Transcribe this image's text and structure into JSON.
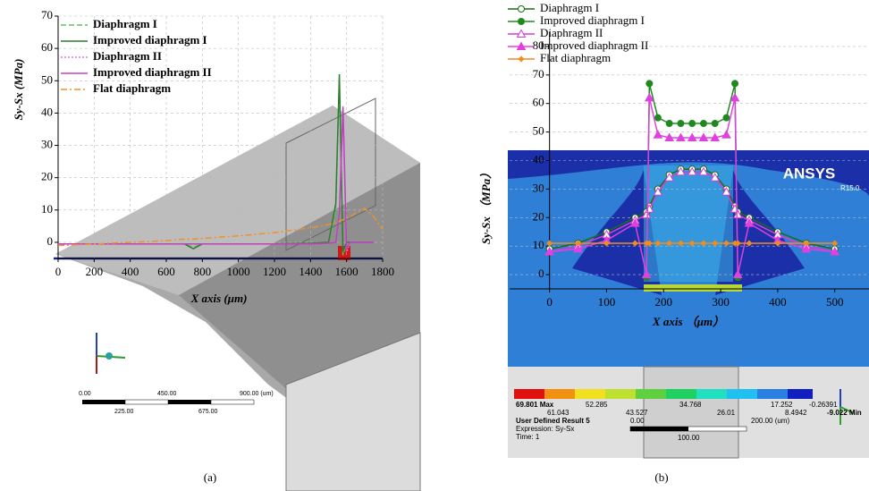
{
  "chart_data": [
    {
      "type": "line",
      "x_label": "X axis (μm)",
      "y_label": "Sy-Sx (MPa)",
      "caption": "(a)",
      "x": [
        0,
        200,
        400,
        600,
        700,
        750,
        800,
        1000,
        1200,
        1400,
        1500,
        1540,
        1560,
        1580,
        1600,
        1620,
        1650,
        1700,
        1750,
        1800
      ],
      "series": [
        {
          "name": "Diaphragm I",
          "color": "#5fbf5f",
          "style": "dashed",
          "values": [
            -0.5,
            -0.5,
            -0.5,
            -0.5,
            -0.5,
            -1.5,
            -0.5,
            -0.5,
            -0.5,
            -0.3,
            0,
            10,
            50,
            -4,
            0,
            0,
            0,
            0,
            0,
            null
          ]
        },
        {
          "name": "Improved diaphragm I",
          "color": "#2e7d32",
          "style": "solid",
          "values": [
            -0.5,
            -0.5,
            -0.5,
            -0.5,
            -0.5,
            -2,
            -0.5,
            -0.5,
            -0.5,
            -0.3,
            0,
            12,
            52,
            -3,
            0,
            0,
            0,
            0,
            0,
            null
          ]
        },
        {
          "name": "Diaphragm II",
          "color": "#e07ad6",
          "style": "dotted",
          "values": [
            -0.5,
            -0.5,
            -0.5,
            -0.5,
            -0.5,
            -0.5,
            -0.5,
            -0.5,
            -0.5,
            -0.5,
            -0.3,
            0,
            8,
            40,
            -3,
            0,
            0,
            0,
            0,
            null
          ]
        },
        {
          "name": "Improved diaphragm II",
          "color": "#c040c0",
          "style": "solid",
          "values": [
            -0.5,
            -0.5,
            -0.5,
            -0.5,
            -0.5,
            -0.5,
            -0.5,
            -0.5,
            -0.5,
            -0.5,
            -0.3,
            0,
            9,
            42,
            -2,
            0,
            0,
            0,
            0,
            null
          ]
        },
        {
          "name": "Flat diaphragm",
          "color": "#f0902a",
          "style": "dashdot",
          "values": [
            -1,
            -0.5,
            0,
            0.5,
            1,
            1,
            1.2,
            2,
            3,
            4.5,
            5.5,
            6,
            6.5,
            7,
            7.5,
            8,
            9,
            10.5,
            8,
            4
          ]
        }
      ],
      "xlim": [
        0,
        1800
      ],
      "ylim": [
        -5,
        70
      ],
      "xticks": [
        0,
        200,
        400,
        600,
        800,
        1000,
        1200,
        1400,
        1600,
        1800
      ],
      "yticks": [
        0,
        10,
        20,
        30,
        40,
        50,
        60,
        70
      ],
      "grid": true,
      "annotations": [
        "0.00",
        "450.00",
        "900.00 (um)",
        "225.00",
        "675.00"
      ]
    },
    {
      "type": "line",
      "x_label": "X axis （μm）",
      "y_label": "Sy-Sx （MPa）",
      "caption": "(b)",
      "x": [
        0,
        50,
        100,
        150,
        170,
        175,
        190,
        210,
        230,
        250,
        270,
        290,
        310,
        325,
        330,
        350,
        400,
        450,
        500
      ],
      "series": [
        {
          "name": "Diaphragm I",
          "color": "#1b6b1b",
          "marker": "open-circle",
          "values": [
            9,
            11,
            15,
            20,
            22,
            24,
            30,
            35,
            37,
            37,
            37,
            35,
            30,
            24,
            22,
            20,
            15,
            11,
            9
          ]
        },
        {
          "name": "Improved diaphragm I",
          "color": "#1e8a1e",
          "marker": "filled-circle",
          "values": [
            null,
            null,
            null,
            null,
            -1,
            67,
            55,
            53,
            53,
            53,
            53,
            53,
            55,
            67,
            -1,
            null,
            null,
            null,
            null
          ]
        },
        {
          "name": "Diaphragm II",
          "color": "#d23fd2",
          "marker": "open-triangle",
          "values": [
            8,
            10,
            14,
            19,
            21,
            23,
            29,
            34,
            36,
            36,
            36,
            34,
            29,
            23,
            21,
            19,
            14,
            10,
            8
          ]
        },
        {
          "name": "Improved diaphragm II",
          "color": "#e040e0",
          "marker": "filled-triangle",
          "values": [
            8,
            9,
            12,
            18,
            0,
            62,
            49,
            48,
            48,
            48,
            48,
            48,
            49,
            62,
            0,
            18,
            12,
            9,
            8
          ]
        },
        {
          "name": "Flat diaphragm",
          "color": "#f08c1e",
          "marker": "diamond",
          "values": [
            11,
            11,
            11,
            11,
            11,
            11,
            11,
            11,
            11,
            11,
            11,
            11,
            11,
            11,
            11,
            11,
            11,
            11,
            11
          ]
        }
      ],
      "xlim": [
        -70,
        560
      ],
      "ylim": [
        -5,
        85
      ],
      "xticks": [
        0,
        100,
        200,
        300,
        400,
        500
      ],
      "yticks": [
        0,
        10,
        20,
        30,
        40,
        50,
        60,
        70,
        80
      ],
      "grid": true,
      "annotations": [
        "ANSYS",
        "R15.0",
        "69.801 Max",
        "61.043",
        "52.285",
        "43.527",
        "34.768",
        "26.01",
        "17.252",
        "8.4942",
        "-0.26391",
        "-9.022 Min",
        "User Defined Result 5",
        "Expression: Sy-Sx",
        "Time: 1",
        "0.00",
        "200.00 (um)",
        "100.00"
      ]
    }
  ]
}
